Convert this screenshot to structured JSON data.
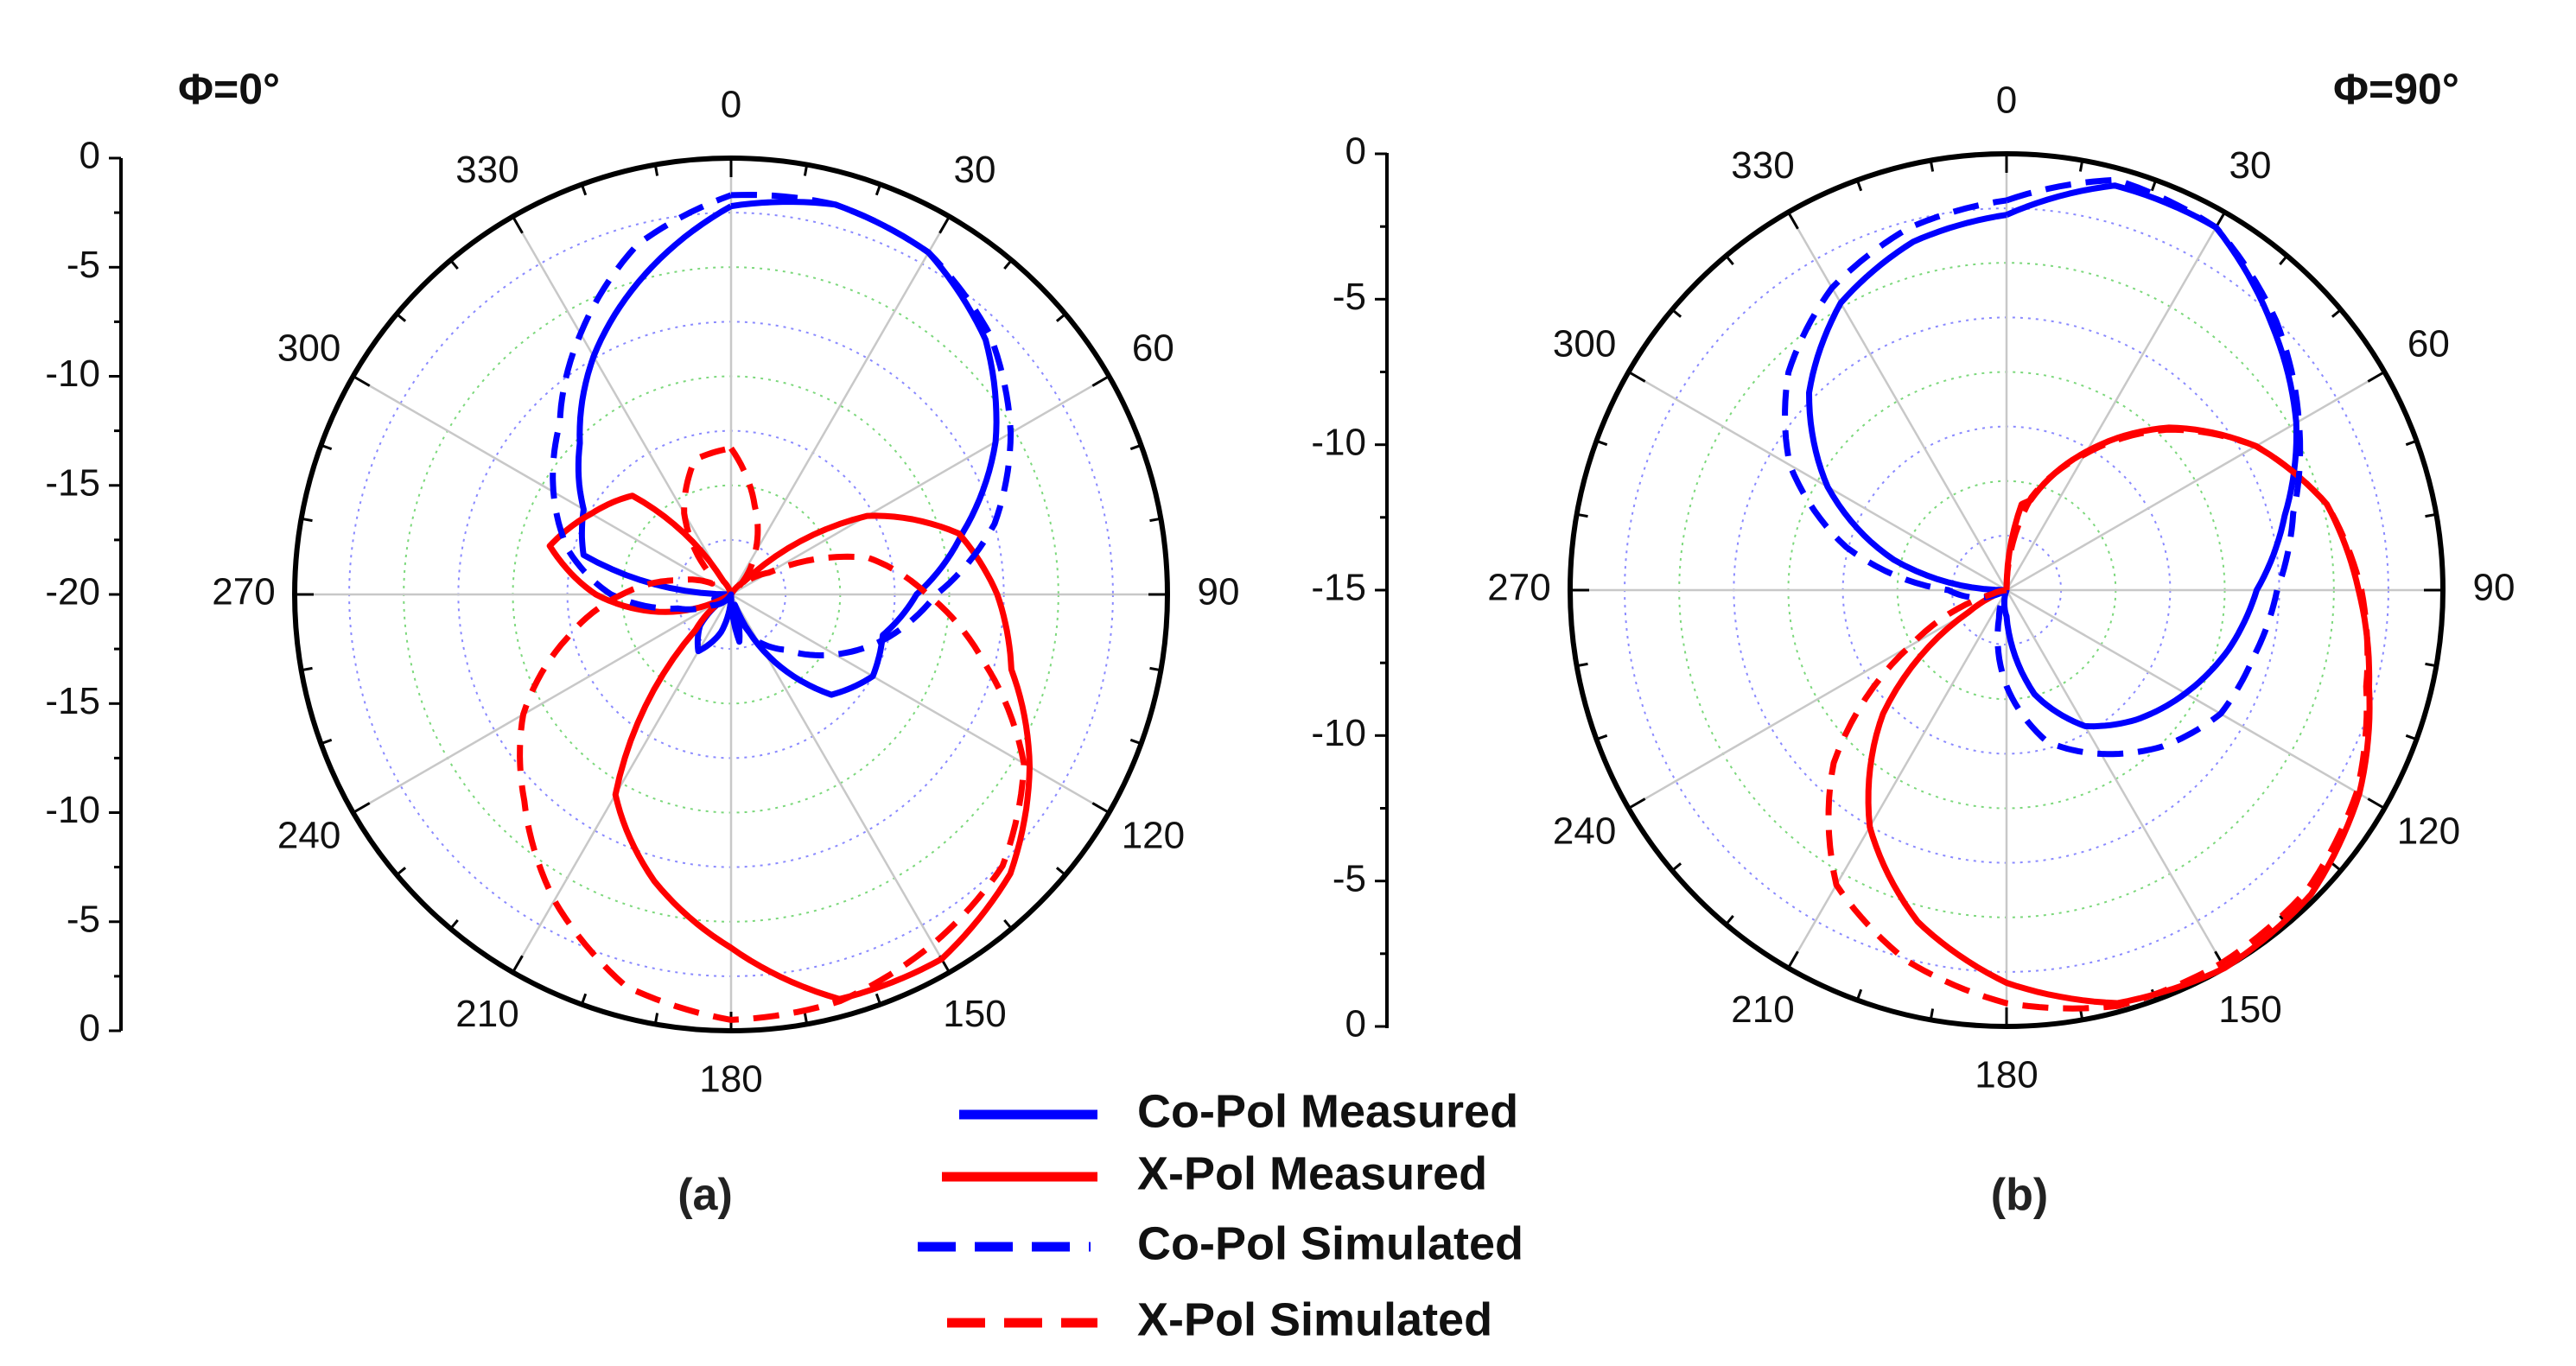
{
  "chart_data": [
    {
      "type": "polar",
      "phi_label": "Φ=0°",
      "caption": "(a)",
      "angle_labels": [
        "0",
        "30",
        "60",
        "90",
        "120",
        "150",
        "180",
        "210",
        "240",
        "270",
        "300",
        "330"
      ],
      "radial_axis_labels": [
        "0",
        "-5",
        "-10",
        "-15",
        "-20",
        "-15",
        "-10",
        "-5",
        "0"
      ],
      "radial_range_db": [
        -20,
        0
      ],
      "series": [
        {
          "name": "Co-Pol Measured",
          "color": "#0000ff",
          "style": "solid",
          "points": [
            [
              0,
              -2.2
            ],
            [
              15,
              -1.5
            ],
            [
              30,
              -1.9
            ],
            [
              45,
              -3.5
            ],
            [
              60,
              -6
            ],
            [
              75,
              -9
            ],
            [
              90,
              -11.5
            ],
            [
              105,
              -12.8
            ],
            [
              120,
              -12.5
            ],
            [
              135,
              -13.5
            ],
            [
              150,
              -17
            ],
            [
              160,
              -19.5
            ],
            [
              170,
              -17.8
            ],
            [
              180,
              -20
            ],
            [
              195,
              -18.2
            ],
            [
              210,
              -17
            ],
            [
              225,
              -18
            ],
            [
              240,
              -20
            ],
            [
              255,
              -19.2
            ],
            [
              270,
              -20
            ],
            [
              285,
              -13
            ],
            [
              300,
              -12.2
            ],
            [
              315,
              -10.2
            ],
            [
              330,
              -7.4
            ],
            [
              345,
              -4.8
            ],
            [
              360,
              -2.2
            ]
          ]
        },
        {
          "name": "X-Pol Measured",
          "color": "#ff0000",
          "style": "solid",
          "points": [
            [
              0,
              -20
            ],
            [
              30,
              -20
            ],
            [
              45,
              -19.2
            ],
            [
              60,
              -12.8
            ],
            [
              75,
              -9.2
            ],
            [
              90,
              -7.8
            ],
            [
              105,
              -6.7
            ],
            [
              120,
              -4.2
            ],
            [
              135,
              -1.9
            ],
            [
              150,
              -0.7
            ],
            [
              165,
              -0.8
            ],
            [
              180,
              -3.8
            ],
            [
              195,
              -6.4
            ],
            [
              210,
              -9.4
            ],
            [
              225,
              -17.7
            ],
            [
              240,
              -20
            ],
            [
              270,
              -13.8
            ],
            [
              285,
              -11.4
            ],
            [
              300,
              -12.6
            ],
            [
              315,
              -13.6
            ],
            [
              330,
              -19.3
            ],
            [
              345,
              -20
            ],
            [
              360,
              -20
            ]
          ]
        },
        {
          "name": "Co-Pol Simulated",
          "color": "#0000ff",
          "style": "dashed",
          "points": [
            [
              0,
              -1.7
            ],
            [
              15,
              -1.5
            ],
            [
              30,
              -1.9
            ],
            [
              45,
              -3.2
            ],
            [
              60,
              -5.2
            ],
            [
              75,
              -7.5
            ],
            [
              90,
              -10.6
            ],
            [
              105,
              -12.5
            ],
            [
              120,
              -14.5
            ],
            [
              135,
              -16.4
            ],
            [
              150,
              -17.5
            ],
            [
              165,
              -19.5
            ],
            [
              180,
              -20
            ],
            [
              210,
              -20
            ],
            [
              240,
              -19
            ],
            [
              255,
              -17.5
            ],
            [
              270,
              -14.5
            ],
            [
              285,
              -12.3
            ],
            [
              300,
              -10.6
            ],
            [
              315,
              -8.9
            ],
            [
              330,
              -6.2
            ],
            [
              345,
              -3.4
            ],
            [
              360,
              -1.7
            ]
          ]
        },
        {
          "name": "X-Pol Simulated",
          "color": "#ff0000",
          "style": "dashed",
          "points": [
            [
              0,
              -13.3
            ],
            [
              15,
              -15.8
            ],
            [
              30,
              -17.8
            ],
            [
              45,
              -19.5
            ],
            [
              60,
              -18
            ],
            [
              75,
              -13.5
            ],
            [
              90,
              -11
            ],
            [
              105,
              -8
            ],
            [
              120,
              -4.5
            ],
            [
              135,
              -2.4
            ],
            [
              150,
              -1.5
            ],
            [
              165,
              -0.7
            ],
            [
              180,
              -0.5
            ],
            [
              195,
              -1.4
            ],
            [
              210,
              -3.8
            ],
            [
              225,
              -6.6
            ],
            [
              240,
              -9
            ],
            [
              255,
              -12.2
            ],
            [
              270,
              -15
            ],
            [
              285,
              -17.5
            ],
            [
              300,
              -19
            ],
            [
              315,
              -18.5
            ],
            [
              330,
              -15.7
            ],
            [
              345,
              -13.6
            ],
            [
              360,
              -13.3
            ]
          ]
        }
      ]
    },
    {
      "type": "polar",
      "phi_label": "Φ=90°",
      "caption": "(b)",
      "angle_labels": [
        "0",
        "30",
        "60",
        "90",
        "120",
        "150",
        "180",
        "210",
        "240",
        "270",
        "300",
        "330"
      ],
      "radial_axis_labels": [
        "0",
        "-5",
        "-10",
        "-15",
        "-10",
        "-5",
        "0"
      ],
      "radial_range_db": [
        -15,
        0
      ],
      "series": [
        {
          "name": "Co-Pol Measured",
          "color": "#0000ff",
          "style": "solid",
          "points": [
            [
              0,
              -2.1
            ],
            [
              15,
              -0.6
            ],
            [
              30,
              -0.6
            ],
            [
              45,
              -2.1
            ],
            [
              60,
              -3.5
            ],
            [
              75,
              -5.1
            ],
            [
              90,
              -6.4
            ],
            [
              105,
              -7.1
            ],
            [
              120,
              -7.9
            ],
            [
              135,
              -8.7
            ],
            [
              150,
              -9.6
            ],
            [
              165,
              -11.3
            ],
            [
              180,
              -14.1
            ],
            [
              200,
              -15
            ],
            [
              270,
              -15
            ],
            [
              285,
              -11
            ],
            [
              300,
              -7.9
            ],
            [
              315,
              -5.4
            ],
            [
              330,
              -3.6
            ],
            [
              345,
              -2.6
            ],
            [
              360,
              -2.1
            ]
          ]
        },
        {
          "name": "X-Pol Measured",
          "color": "#ff0000",
          "style": "solid",
          "points": [
            [
              0,
              -15
            ],
            [
              10,
              -12
            ],
            [
              15,
              -11.8
            ],
            [
              30,
              -9.5
            ],
            [
              45,
              -7.1
            ],
            [
              60,
              -5.1
            ],
            [
              75,
              -3.6
            ],
            [
              90,
              -2.9
            ],
            [
              105,
              -2.1
            ],
            [
              120,
              -1
            ],
            [
              135,
              -0.2
            ],
            [
              150,
              0
            ],
            [
              165,
              -0.3
            ],
            [
              180,
              -1.5
            ],
            [
              195,
              -3.2
            ],
            [
              210,
              -5.6
            ],
            [
              225,
              -9
            ],
            [
              240,
              -13.5
            ],
            [
              250,
              -15
            ],
            [
              360,
              -15
            ]
          ]
        },
        {
          "name": "Co-Pol Simulated",
          "color": "#0000ff",
          "style": "dashed",
          "points": [
            [
              0,
              -1.6
            ],
            [
              15,
              -0.4
            ],
            [
              30,
              -0.6
            ],
            [
              45,
              -1.9
            ],
            [
              60,
              -3.4
            ],
            [
              75,
              -4.8
            ],
            [
              90,
              -5.7
            ],
            [
              105,
              -6.2
            ],
            [
              120,
              -6.5
            ],
            [
              135,
              -7.4
            ],
            [
              150,
              -8.5
            ],
            [
              165,
              -9.6
            ],
            [
              180,
              -11.7
            ],
            [
              195,
              -14
            ],
            [
              210,
              -15
            ],
            [
              240,
              -15
            ],
            [
              270,
              -13
            ],
            [
              285,
              -9.3
            ],
            [
              300,
              -6.4
            ],
            [
              315,
              -4.4
            ],
            [
              330,
              -3
            ],
            [
              345,
              -2.1
            ],
            [
              360,
              -1.6
            ]
          ]
        },
        {
          "name": "X-Pol Simulated",
          "color": "#ff0000",
          "style": "dashed",
          "points": [
            [
              0,
              -15
            ],
            [
              15,
              -11.7
            ],
            [
              30,
              -9.6
            ],
            [
              45,
              -7.2
            ],
            [
              60,
              -5.1
            ],
            [
              75,
              -3.6
            ],
            [
              90,
              -2.8
            ],
            [
              105,
              -2.2
            ],
            [
              120,
              -1.1
            ],
            [
              135,
              -0.4
            ],
            [
              150,
              -0.2
            ],
            [
              165,
              -0.2
            ],
            [
              180,
              -0.8
            ],
            [
              195,
              -1.8
            ],
            [
              210,
              -3.3
            ],
            [
              225,
              -6.6
            ],
            [
              240,
              -11.2
            ],
            [
              255,
              -14.5
            ],
            [
              265,
              -15
            ],
            [
              360,
              -15
            ]
          ]
        }
      ]
    }
  ],
  "legend": [
    {
      "label": "Co-Pol Measured",
      "color": "#0000ff",
      "style": "solid"
    },
    {
      "label": "X-Pol Measured",
      "color": "#ff0000",
      "style": "solid"
    },
    {
      "label": "Co-Pol Simulated",
      "color": "#0000ff",
      "style": "dashed"
    },
    {
      "label": "X-Pol Simulated",
      "color": "#ff0000",
      "style": "dashed"
    }
  ]
}
